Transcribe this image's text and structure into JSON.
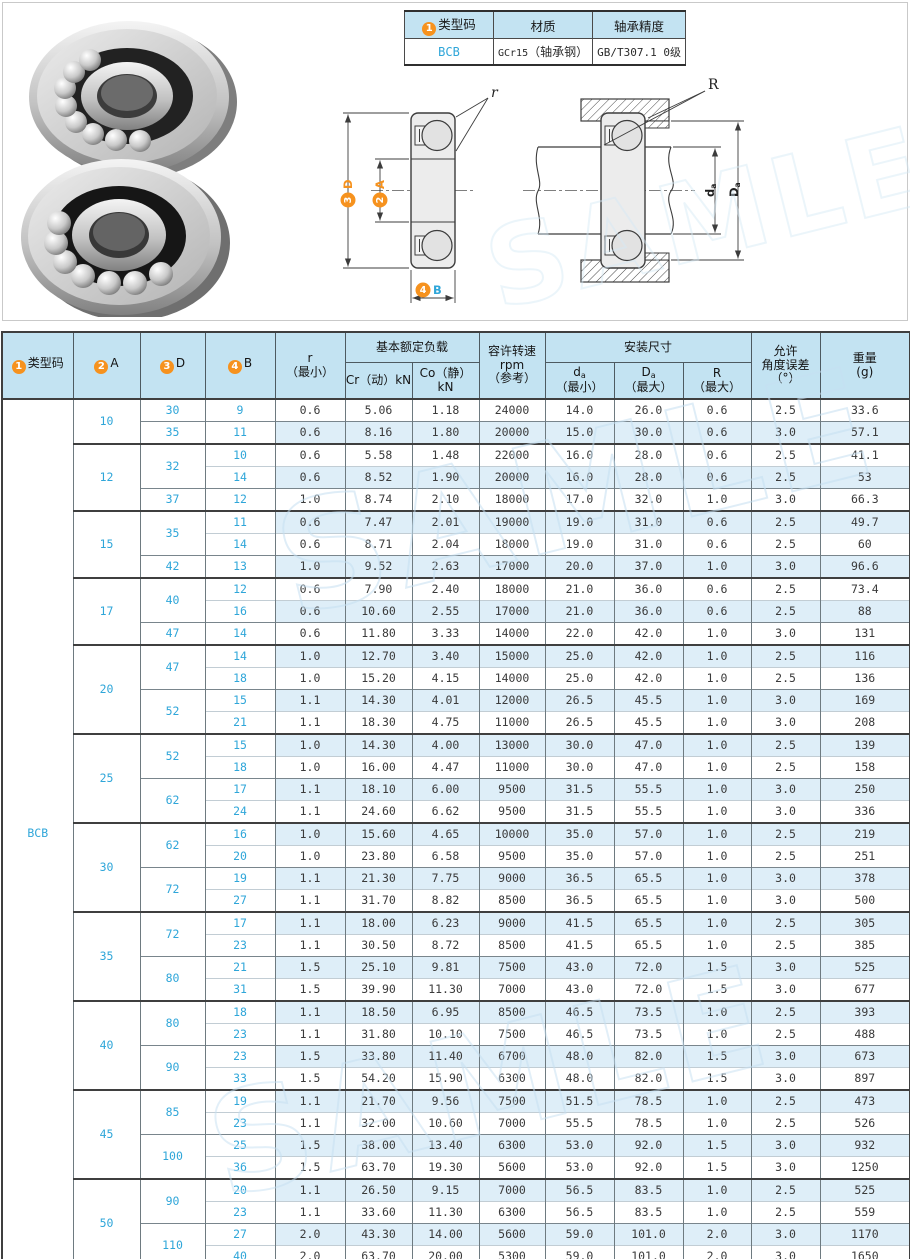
{
  "info_table": {
    "headers": [
      {
        "badge": "1",
        "label": "类型码"
      },
      {
        "label": "材质"
      },
      {
        "label": "轴承精度"
      }
    ],
    "row": {
      "type_code": "BCB",
      "material_code": "GCr15",
      "material_paren": "（轴承钢）",
      "precision": "GB/T307.1 0级"
    }
  },
  "diagram": {
    "left": {
      "r_label": "r",
      "d_badge": "3",
      "d_label": "D",
      "a_badge": "2",
      "a_label": "A",
      "b_badge": "4",
      "b_label": "B"
    },
    "right": {
      "R_label": "R",
      "da_main": "d",
      "da_sub": "a",
      "Da_main": "D",
      "Da_sub": "a"
    }
  },
  "watermark": {
    "text": "SAMLE"
  },
  "spec_table": {
    "type_code": "BCB",
    "header": {
      "c1_badge": "1",
      "c1": "类型码",
      "c2_badge": "2",
      "c2": "A",
      "c3_badge": "3",
      "c3": "D",
      "c4_badge": "4",
      "c4": "B",
      "r_line1": "r",
      "r_line2": "（最小）",
      "load_group": "基本额定负载",
      "cr": "Cr（动）kN",
      "co": "Co（静）kN",
      "rpm_line1": "容许转速",
      "rpm_line2": "rpm",
      "rpm_line3": "（参考）",
      "mount_group": "安装尺寸",
      "da_main": "d",
      "da_sub": "a",
      "da_line2": "（最小）",
      "Da_main": "D",
      "Da_sub": "a",
      "Da_line2": "（最大）",
      "R_line1": "R",
      "R_line2": "（最大）",
      "ang_line1": "允许",
      "ang_line2": "角度误差",
      "ang_line3": "（°）",
      "wt_line1": "重量",
      "wt_line2": "(g)"
    },
    "groups": [
      {
        "a": "10",
        "subs": [
          {
            "d": "30",
            "rows": [
              {
                "b": "9",
                "r": "0.6",
                "cr": "5.06",
                "co": "1.18",
                "rpm": "24000",
                "da": "14.0",
                "Da": "26.0",
                "R": "0.6",
                "ang": "2.5",
                "wt": "33.6"
              }
            ]
          },
          {
            "d": "35",
            "rows": [
              {
                "b": "11",
                "r": "0.6",
                "cr": "8.16",
                "co": "1.80",
                "rpm": "20000",
                "da": "15.0",
                "Da": "30.0",
                "R": "0.6",
                "ang": "3.0",
                "wt": "57.1"
              }
            ]
          }
        ]
      },
      {
        "a": "12",
        "subs": [
          {
            "d": "32",
            "rows": [
              {
                "b": "10",
                "r": "0.6",
                "cr": "5.58",
                "co": "1.48",
                "rpm": "22000",
                "da": "16.0",
                "Da": "28.0",
                "R": "0.6",
                "ang": "2.5",
                "wt": "41.1"
              },
              {
                "b": "14",
                "r": "0.6",
                "cr": "8.52",
                "co": "1.90",
                "rpm": "20000",
                "da": "16.0",
                "Da": "28.0",
                "R": "0.6",
                "ang": "2.5",
                "wt": "53"
              }
            ]
          },
          {
            "d": "37",
            "rows": [
              {
                "b": "12",
                "r": "1.0",
                "cr": "8.74",
                "co": "2.10",
                "rpm": "18000",
                "da": "17.0",
                "Da": "32.0",
                "R": "1.0",
                "ang": "3.0",
                "wt": "66.3"
              }
            ]
          }
        ]
      },
      {
        "a": "15",
        "subs": [
          {
            "d": "35",
            "rows": [
              {
                "b": "11",
                "r": "0.6",
                "cr": "7.47",
                "co": "2.01",
                "rpm": "19000",
                "da": "19.0",
                "Da": "31.0",
                "R": "0.6",
                "ang": "2.5",
                "wt": "49.7"
              },
              {
                "b": "14",
                "r": "0.6",
                "cr": "8.71",
                "co": "2.04",
                "rpm": "18000",
                "da": "19.0",
                "Da": "31.0",
                "R": "0.6",
                "ang": "2.5",
                "wt": "60"
              }
            ]
          },
          {
            "d": "42",
            "rows": [
              {
                "b": "13",
                "r": "1.0",
                "cr": "9.52",
                "co": "2.63",
                "rpm": "17000",
                "da": "20.0",
                "Da": "37.0",
                "R": "1.0",
                "ang": "3.0",
                "wt": "96.6"
              }
            ]
          }
        ]
      },
      {
        "a": "17",
        "subs": [
          {
            "d": "40",
            "rows": [
              {
                "b": "12",
                "r": "0.6",
                "cr": "7.90",
                "co": "2.40",
                "rpm": "18000",
                "da": "21.0",
                "Da": "36.0",
                "R": "0.6",
                "ang": "2.5",
                "wt": "73.4"
              },
              {
                "b": "16",
                "r": "0.6",
                "cr": "10.60",
                "co": "2.55",
                "rpm": "17000",
                "da": "21.0",
                "Da": "36.0",
                "R": "0.6",
                "ang": "2.5",
                "wt": "88"
              }
            ]
          },
          {
            "d": "47",
            "rows": [
              {
                "b": "14",
                "r": "0.6",
                "cr": "11.80",
                "co": "3.33",
                "rpm": "14000",
                "da": "22.0",
                "Da": "42.0",
                "R": "1.0",
                "ang": "3.0",
                "wt": "131"
              }
            ]
          }
        ]
      },
      {
        "a": "20",
        "subs": [
          {
            "d": "47",
            "rows": [
              {
                "b": "14",
                "r": "1.0",
                "cr": "12.70",
                "co": "3.40",
                "rpm": "15000",
                "da": "25.0",
                "Da": "42.0",
                "R": "1.0",
                "ang": "2.5",
                "wt": "116"
              },
              {
                "b": "18",
                "r": "1.0",
                "cr": "15.20",
                "co": "4.15",
                "rpm": "14000",
                "da": "25.0",
                "Da": "42.0",
                "R": "1.0",
                "ang": "2.5",
                "wt": "136"
              }
            ]
          },
          {
            "d": "52",
            "rows": [
              {
                "b": "15",
                "r": "1.1",
                "cr": "14.30",
                "co": "4.01",
                "rpm": "12000",
                "da": "26.5",
                "Da": "45.5",
                "R": "1.0",
                "ang": "3.0",
                "wt": "169"
              },
              {
                "b": "21",
                "r": "1.1",
                "cr": "18.30",
                "co": "4.75",
                "rpm": "11000",
                "da": "26.5",
                "Da": "45.5",
                "R": "1.0",
                "ang": "3.0",
                "wt": "208"
              }
            ]
          }
        ]
      },
      {
        "a": "25",
        "subs": [
          {
            "d": "52",
            "rows": [
              {
                "b": "15",
                "r": "1.0",
                "cr": "14.30",
                "co": "4.00",
                "rpm": "13000",
                "da": "30.0",
                "Da": "47.0",
                "R": "1.0",
                "ang": "2.5",
                "wt": "139"
              },
              {
                "b": "18",
                "r": "1.0",
                "cr": "16.00",
                "co": "4.47",
                "rpm": "11000",
                "da": "30.0",
                "Da": "47.0",
                "R": "1.0",
                "ang": "2.5",
                "wt": "158"
              }
            ]
          },
          {
            "d": "62",
            "rows": [
              {
                "b": "17",
                "r": "1.1",
                "cr": "18.10",
                "co": "6.00",
                "rpm": "9500",
                "da": "31.5",
                "Da": "55.5",
                "R": "1.0",
                "ang": "3.0",
                "wt": "250"
              },
              {
                "b": "24",
                "r": "1.1",
                "cr": "24.60",
                "co": "6.62",
                "rpm": "9500",
                "da": "31.5",
                "Da": "55.5",
                "R": "1.0",
                "ang": "3.0",
                "wt": "336"
              }
            ]
          }
        ]
      },
      {
        "a": "30",
        "subs": [
          {
            "d": "62",
            "rows": [
              {
                "b": "16",
                "r": "1.0",
                "cr": "15.60",
                "co": "4.65",
                "rpm": "10000",
                "da": "35.0",
                "Da": "57.0",
                "R": "1.0",
                "ang": "2.5",
                "wt": "219"
              },
              {
                "b": "20",
                "r": "1.0",
                "cr": "23.80",
                "co": "6.58",
                "rpm": "9500",
                "da": "35.0",
                "Da": "57.0",
                "R": "1.0",
                "ang": "2.5",
                "wt": "251"
              }
            ]
          },
          {
            "d": "72",
            "rows": [
              {
                "b": "19",
                "r": "1.1",
                "cr": "21.30",
                "co": "7.75",
                "rpm": "9000",
                "da": "36.5",
                "Da": "65.5",
                "R": "1.0",
                "ang": "3.0",
                "wt": "378"
              },
              {
                "b": "27",
                "r": "1.1",
                "cr": "31.70",
                "co": "8.82",
                "rpm": "8500",
                "da": "36.5",
                "Da": "65.5",
                "R": "1.0",
                "ang": "3.0",
                "wt": "500"
              }
            ]
          }
        ]
      },
      {
        "a": "35",
        "subs": [
          {
            "d": "72",
            "rows": [
              {
                "b": "17",
                "r": "1.1",
                "cr": "18.00",
                "co": "6.23",
                "rpm": "9000",
                "da": "41.5",
                "Da": "65.5",
                "R": "1.0",
                "ang": "2.5",
                "wt": "305"
              },
              {
                "b": "23",
                "r": "1.1",
                "cr": "30.50",
                "co": "8.72",
                "rpm": "8500",
                "da": "41.5",
                "Da": "65.5",
                "R": "1.0",
                "ang": "2.5",
                "wt": "385"
              }
            ]
          },
          {
            "d": "80",
            "rows": [
              {
                "b": "21",
                "r": "1.5",
                "cr": "25.10",
                "co": "9.81",
                "rpm": "7500",
                "da": "43.0",
                "Da": "72.0",
                "R": "1.5",
                "ang": "3.0",
                "wt": "525"
              },
              {
                "b": "31",
                "r": "1.5",
                "cr": "39.90",
                "co": "11.30",
                "rpm": "7000",
                "da": "43.0",
                "Da": "72.0",
                "R": "1.5",
                "ang": "3.0",
                "wt": "677"
              }
            ]
          }
        ]
      },
      {
        "a": "40",
        "subs": [
          {
            "d": "80",
            "rows": [
              {
                "b": "18",
                "r": "1.1",
                "cr": "18.50",
                "co": "6.95",
                "rpm": "8500",
                "da": "46.5",
                "Da": "73.5",
                "R": "1.0",
                "ang": "2.5",
                "wt": "393"
              },
              {
                "b": "23",
                "r": "1.1",
                "cr": "31.80",
                "co": "10.10",
                "rpm": "7500",
                "da": "46.5",
                "Da": "73.5",
                "R": "1.0",
                "ang": "2.5",
                "wt": "488"
              }
            ]
          },
          {
            "d": "90",
            "rows": [
              {
                "b": "23",
                "r": "1.5",
                "cr": "33.80",
                "co": "11.40",
                "rpm": "6700",
                "da": "48.0",
                "Da": "82.0",
                "R": "1.5",
                "ang": "3.0",
                "wt": "673"
              },
              {
                "b": "33",
                "r": "1.5",
                "cr": "54.20",
                "co": "15.90",
                "rpm": "6300",
                "da": "48.0",
                "Da": "82.0",
                "R": "1.5",
                "ang": "3.0",
                "wt": "897"
              }
            ]
          }
        ]
      },
      {
        "a": "45",
        "subs": [
          {
            "d": "85",
            "rows": [
              {
                "b": "19",
                "r": "1.1",
                "cr": "21.70",
                "co": "9.56",
                "rpm": "7500",
                "da": "51.5",
                "Da": "78.5",
                "R": "1.0",
                "ang": "2.5",
                "wt": "473"
              },
              {
                "b": "23",
                "r": "1.1",
                "cr": "32.00",
                "co": "10.60",
                "rpm": "7000",
                "da": "55.5",
                "Da": "78.5",
                "R": "1.0",
                "ang": "2.5",
                "wt": "526"
              }
            ]
          },
          {
            "d": "100",
            "rows": [
              {
                "b": "25",
                "r": "1.5",
                "cr": "38.00",
                "co": "13.40",
                "rpm": "6300",
                "da": "53.0",
                "Da": "92.0",
                "R": "1.5",
                "ang": "3.0",
                "wt": "932"
              },
              {
                "b": "36",
                "r": "1.5",
                "cr": "63.70",
                "co": "19.30",
                "rpm": "5600",
                "da": "53.0",
                "Da": "92.0",
                "R": "1.5",
                "ang": "3.0",
                "wt": "1250"
              }
            ]
          }
        ]
      },
      {
        "a": "50",
        "subs": [
          {
            "d": "90",
            "rows": [
              {
                "b": "20",
                "r": "1.1",
                "cr": "26.50",
                "co": "9.15",
                "rpm": "7000",
                "da": "56.5",
                "Da": "83.5",
                "R": "1.0",
                "ang": "2.5",
                "wt": "525"
              },
              {
                "b": "23",
                "r": "1.1",
                "cr": "33.60",
                "co": "11.30",
                "rpm": "6300",
                "da": "56.5",
                "Da": "83.5",
                "R": "1.0",
                "ang": "2.5",
                "wt": "559"
              }
            ]
          },
          {
            "d": "110",
            "rows": [
              {
                "b": "27",
                "r": "2.0",
                "cr": "43.30",
                "co": "14.00",
                "rpm": "5600",
                "da": "59.0",
                "Da": "101.0",
                "R": "2.0",
                "ang": "3.0",
                "wt": "1170"
              },
              {
                "b": "40",
                "r": "2.0",
                "cr": "63.70",
                "co": "20.00",
                "rpm": "5300",
                "da": "59.0",
                "Da": "101.0",
                "R": "2.0",
                "ang": "3.0",
                "wt": "1650"
              }
            ]
          }
        ]
      }
    ],
    "colors": {
      "accent_orange": "#f6921e",
      "accent_cyan": "#2fa6d9",
      "header_blue": "#c3e3f2",
      "row_alt_blue": "#deeef8"
    }
  }
}
